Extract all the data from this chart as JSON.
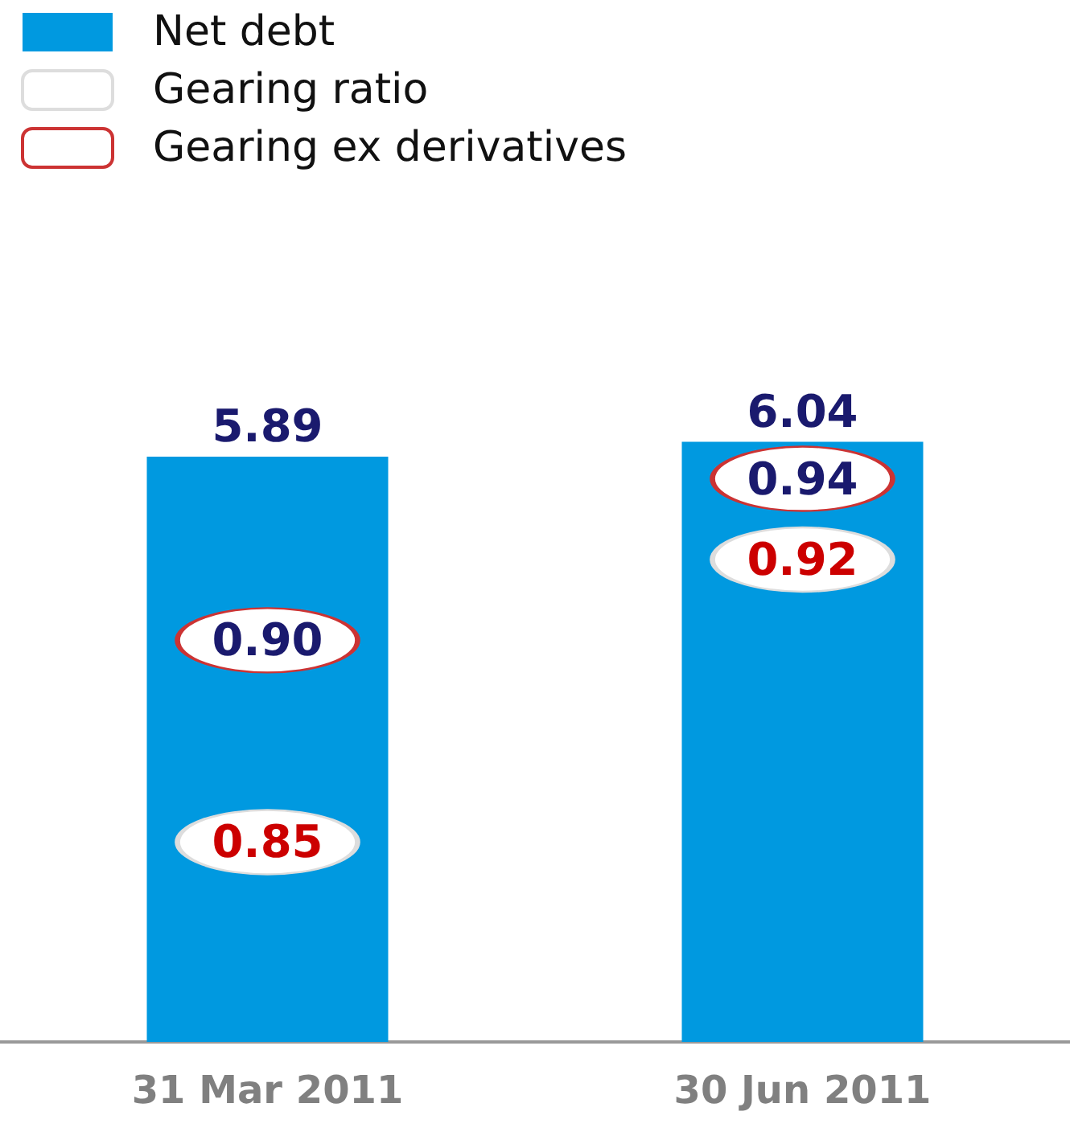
{
  "chart_data": {
    "type": "bar",
    "categories": [
      "31 Mar 2011",
      "30 Jun 2011"
    ],
    "series": [
      {
        "name": "Net debt",
        "color": "#0099e0",
        "values": [
          5.89,
          6.04
        ]
      },
      {
        "name": "Gearing ratio",
        "type": "scatter",
        "axis": "y2",
        "color": "#ffffff",
        "values": [
          0.85,
          0.92
        ],
        "value_labels": [
          "0.85",
          "0.92"
        ]
      },
      {
        "name": "Gearing ex derivatives",
        "type": "scatter",
        "axis": "y2",
        "color": "#ffffff",
        "values": [
          0.9,
          0.94
        ],
        "value_labels": [
          "0.90",
          "0.94"
        ]
      }
    ],
    "data_labels": true,
    "legend": "top left",
    "grid": false,
    "tick_labels": "x"
  }
}
